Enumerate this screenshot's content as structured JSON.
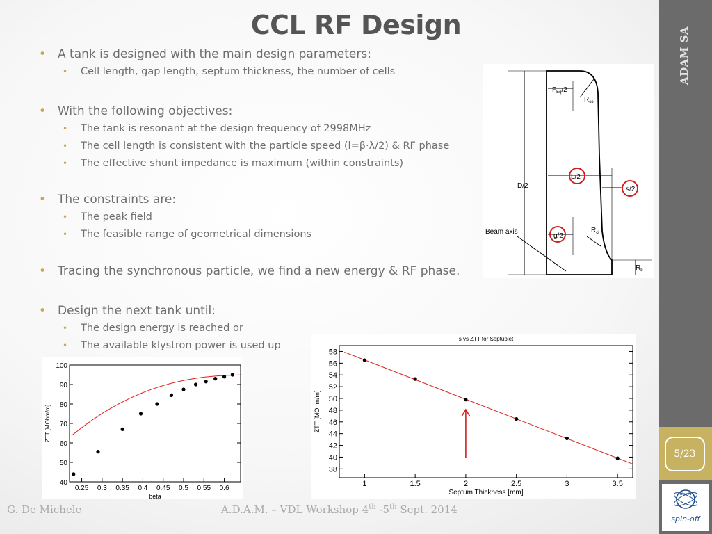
{
  "slide": {
    "title": "CCL RF Design",
    "sidebar_title": "ADAM SA",
    "page_number": "5/23",
    "logo_text": "spin-off",
    "logo_mark": "CERN"
  },
  "bullets": [
    {
      "level": 1,
      "text": "A tank is designed with the main design parameters:"
    },
    {
      "level": 2,
      "text": "Cell length, gap length, septum thickness, the number of cells"
    },
    {
      "level": 1,
      "text": "With the following objectives:"
    },
    {
      "level": 2,
      "text": "The tank is resonant at the design frequency of 2998MHz"
    },
    {
      "level": 2,
      "text": "The cell length is consistent with the particle speed (l=β·λ/2) & RF phase"
    },
    {
      "level": 2,
      "text": "The effective shunt impedance is maximum (within constraints)"
    },
    {
      "level": 1,
      "text": "The constraints are:"
    },
    {
      "level": 2,
      "text": "The peak field"
    },
    {
      "level": 2,
      "text": "The feasible range of geometrical dimensions"
    },
    {
      "level": 1,
      "text": "Tracing the synchronous particle, we find a new energy & RF phase."
    },
    {
      "level": 1,
      "text": "Design the next tank until:"
    },
    {
      "level": 2,
      "text": "The design energy is reached or"
    },
    {
      "level": 2,
      "text": "The available klystron power is used up"
    }
  ],
  "footer": {
    "author": "G. De Michele",
    "event_prefix": "A.D.A.M. – VDL Workshop  4",
    "sup1": "th",
    "dash": " -5",
    "sup2": "th",
    "event_suffix": "  Sept. 2014"
  },
  "diagram": {
    "labels": {
      "fhalf": "F",
      "fsub": "Eq",
      "fslash": "/2",
      "rco": "R",
      "rco_sub": "co",
      "lhalf": "L/2",
      "shalf": "s/2",
      "dhalf": "D/2",
      "beam_axis": "Beam axis",
      "ghalf": "g/2",
      "rci": "R",
      "rci_sub": "ci",
      "rb": "R",
      "rb_sub": "b"
    },
    "highlight_color": "#d11f1f"
  },
  "chart_data": [
    {
      "type": "scatter",
      "title": "",
      "xlabel": "beta",
      "ylabel": "ZTT [MOhm/m]",
      "xlim": [
        0.22,
        0.64
      ],
      "ylim": [
        40,
        100
      ],
      "xticks": [
        0.25,
        0.3,
        0.35,
        0.4,
        0.45,
        0.5,
        0.55,
        0.6
      ],
      "yticks": [
        40,
        50,
        60,
        70,
        80,
        90,
        100
      ],
      "x": [
        0.23,
        0.29,
        0.35,
        0.395,
        0.435,
        0.47,
        0.5,
        0.53,
        0.555,
        0.578,
        0.6,
        0.62
      ],
      "y": [
        44,
        55.5,
        67,
        75,
        80,
        84.5,
        87.5,
        90,
        91.5,
        93,
        94,
        95
      ],
      "fit_color": "#e0201a",
      "grid": false
    },
    {
      "type": "scatter",
      "title": "s vs ZTT for Septuplet",
      "xlabel": "Septum Thickness [mm]",
      "ylabel": "ZTT [MOhm/m]",
      "xlim": [
        0.75,
        3.65
      ],
      "ylim": [
        36.5,
        59
      ],
      "xticks": [
        1,
        1.5,
        2,
        2.5,
        3,
        3.5
      ],
      "yticks": [
        38,
        40,
        42,
        44,
        46,
        48,
        50,
        52,
        54,
        56,
        58
      ],
      "x": [
        1,
        1.5,
        2,
        2.5,
        3,
        3.5
      ],
      "y": [
        56.5,
        53.3,
        49.8,
        46.5,
        43.2,
        39.8
      ],
      "fit_color": "#e0201a",
      "arrow_at_x": 2,
      "grid": false
    }
  ]
}
